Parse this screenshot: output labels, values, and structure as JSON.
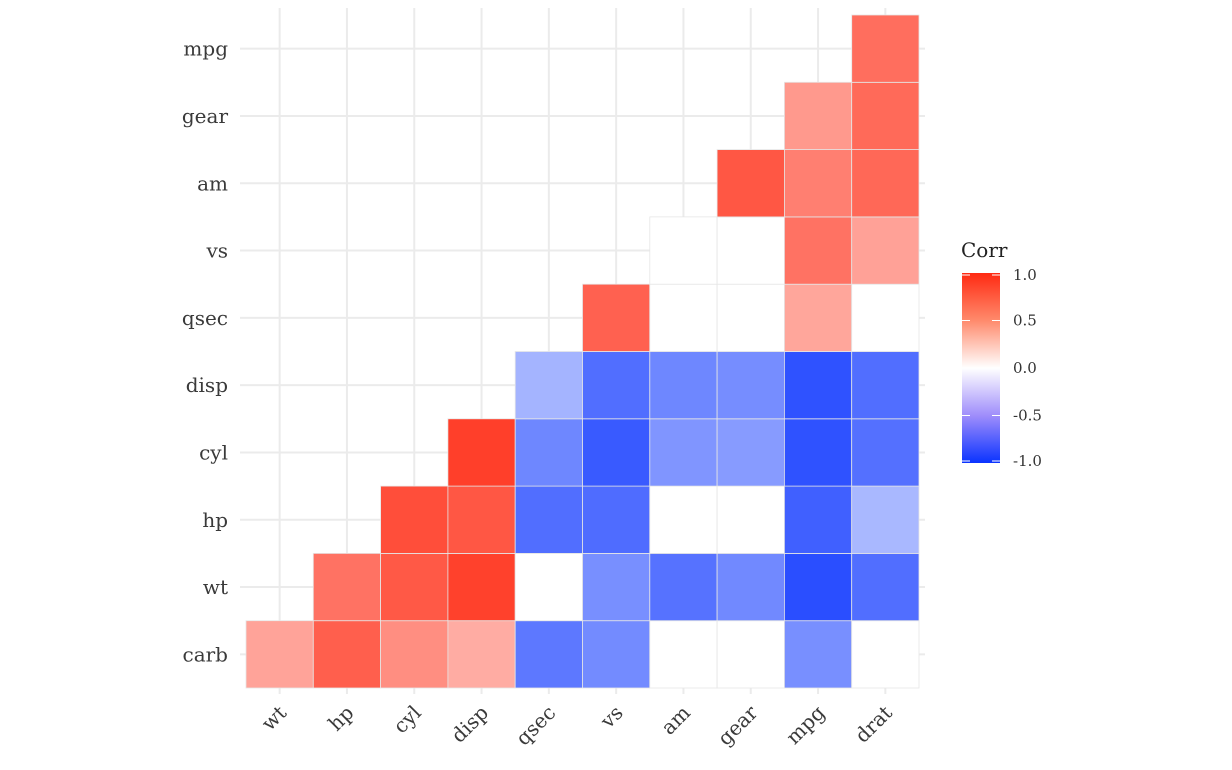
{
  "chart_data": {
    "type": "heatmap",
    "title": "",
    "xlabel": "",
    "ylabel": "",
    "x_categories": [
      "wt",
      "hp",
      "cyl",
      "disp",
      "qsec",
      "vs",
      "am",
      "gear",
      "mpg",
      "drat"
    ],
    "y_categories": [
      "carb",
      "wt",
      "hp",
      "cyl",
      "disp",
      "qsec",
      "vs",
      "am",
      "gear",
      "mpg"
    ],
    "cells": [
      {
        "x": "wt",
        "y": "carb",
        "value": 0.43
      },
      {
        "x": "hp",
        "y": "carb",
        "value": 0.75
      },
      {
        "x": "cyl",
        "y": "carb",
        "value": 0.53
      },
      {
        "x": "disp",
        "y": "carb",
        "value": 0.39
      },
      {
        "x": "qsec",
        "y": "carb",
        "value": -0.66
      },
      {
        "x": "vs",
        "y": "carb",
        "value": -0.57
      },
      {
        "x": "am",
        "y": "carb",
        "value": 0
      },
      {
        "x": "gear",
        "y": "carb",
        "value": 0
      },
      {
        "x": "mpg",
        "y": "carb",
        "value": -0.55
      },
      {
        "x": "drat",
        "y": "carb",
        "value": 0
      },
      {
        "x": "hp",
        "y": "wt",
        "value": 0.66
      },
      {
        "x": "cyl",
        "y": "wt",
        "value": 0.78
      },
      {
        "x": "disp",
        "y": "wt",
        "value": 0.89
      },
      {
        "x": "qsec",
        "y": "wt",
        "value": 0
      },
      {
        "x": "vs",
        "y": "wt",
        "value": -0.55
      },
      {
        "x": "am",
        "y": "wt",
        "value": -0.69
      },
      {
        "x": "gear",
        "y": "wt",
        "value": -0.58
      },
      {
        "x": "mpg",
        "y": "wt",
        "value": -0.87
      },
      {
        "x": "drat",
        "y": "wt",
        "value": -0.71
      },
      {
        "x": "cyl",
        "y": "hp",
        "value": 0.83
      },
      {
        "x": "disp",
        "y": "hp",
        "value": 0.79
      },
      {
        "x": "qsec",
        "y": "hp",
        "value": -0.71
      },
      {
        "x": "vs",
        "y": "hp",
        "value": -0.72
      },
      {
        "x": "am",
        "y": "hp",
        "value": 0
      },
      {
        "x": "gear",
        "y": "hp",
        "value": 0
      },
      {
        "x": "mpg",
        "y": "hp",
        "value": -0.78
      },
      {
        "x": "drat",
        "y": "hp",
        "value": -0.35
      },
      {
        "x": "disp",
        "y": "cyl",
        "value": 0.9
      },
      {
        "x": "qsec",
        "y": "cyl",
        "value": -0.59
      },
      {
        "x": "vs",
        "y": "cyl",
        "value": -0.81
      },
      {
        "x": "am",
        "y": "cyl",
        "value": -0.52
      },
      {
        "x": "gear",
        "y": "cyl",
        "value": -0.49
      },
      {
        "x": "mpg",
        "y": "cyl",
        "value": -0.85
      },
      {
        "x": "drat",
        "y": "cyl",
        "value": -0.7
      },
      {
        "x": "qsec",
        "y": "disp",
        "value": -0.37
      },
      {
        "x": "vs",
        "y": "disp",
        "value": -0.71
      },
      {
        "x": "am",
        "y": "disp",
        "value": -0.59
      },
      {
        "x": "gear",
        "y": "disp",
        "value": -0.56
      },
      {
        "x": "mpg",
        "y": "disp",
        "value": -0.85
      },
      {
        "x": "drat",
        "y": "disp",
        "value": -0.71
      },
      {
        "x": "vs",
        "y": "qsec",
        "value": 0.74
      },
      {
        "x": "am",
        "y": "qsec",
        "value": 0
      },
      {
        "x": "gear",
        "y": "qsec",
        "value": 0
      },
      {
        "x": "mpg",
        "y": "qsec",
        "value": 0.42
      },
      {
        "x": "drat",
        "y": "qsec",
        "value": 0
      },
      {
        "x": "am",
        "y": "vs",
        "value": 0
      },
      {
        "x": "gear",
        "y": "vs",
        "value": 0
      },
      {
        "x": "mpg",
        "y": "vs",
        "value": 0.66
      },
      {
        "x": "drat",
        "y": "vs",
        "value": 0.44
      },
      {
        "x": "gear",
        "y": "am",
        "value": 0.79
      },
      {
        "x": "mpg",
        "y": "am",
        "value": 0.6
      },
      {
        "x": "drat",
        "y": "am",
        "value": 0.71
      },
      {
        "x": "mpg",
        "y": "gear",
        "value": 0.48
      },
      {
        "x": "drat",
        "y": "gear",
        "value": 0.7
      },
      {
        "x": "drat",
        "y": "mpg",
        "value": 0.68
      }
    ],
    "color_scale": {
      "low": "#0a33ff",
      "mid": "#ffffff",
      "high": "#ff2a12",
      "limits": [
        -1,
        1
      ]
    },
    "legend": {
      "title": "Corr",
      "ticks": [
        1.0,
        0.5,
        0.0,
        -0.5,
        -1.0
      ],
      "tick_labels": [
        "1.0",
        "0.5",
        "0.0",
        "-0.5",
        "-1.0"
      ],
      "position": "right"
    },
    "grid": true
  }
}
